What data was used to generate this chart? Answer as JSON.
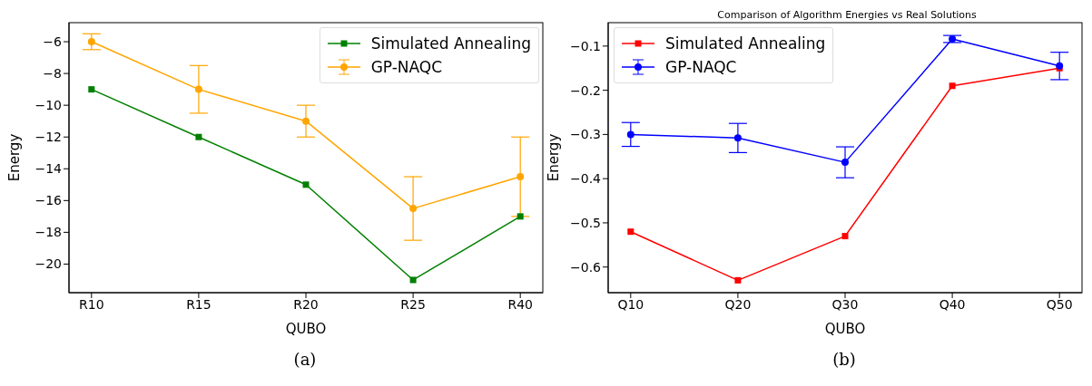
{
  "chart_data": [
    {
      "type": "line",
      "xlabel": "QUBO",
      "ylabel": "Energy",
      "categories": [
        "R10",
        "R15",
        "R20",
        "R25",
        "R40"
      ],
      "ylim": [
        -21.8,
        -4.8
      ],
      "yticks": [
        -20,
        -18,
        -16,
        -14,
        -12,
        -10,
        -8,
        -6
      ],
      "grid": false,
      "legend": "top right",
      "annotations": [
        "(a)"
      ],
      "series": [
        {
          "name": "Simulated Annealing",
          "color": "#008000",
          "marker": "square",
          "values": [
            -9,
            -12,
            -15,
            -21,
            -17
          ]
        },
        {
          "name": "GP-NAQC",
          "color": "#ffa500",
          "marker": "circle",
          "values": [
            -6,
            -9,
            -11,
            -16.5,
            -14.5
          ],
          "errors": [
            0.5,
            1.5,
            1,
            2,
            2.5
          ]
        }
      ]
    },
    {
      "type": "line",
      "title": "Comparison of Algorithm Energies vs Real Solutions",
      "xlabel": "QUBO",
      "ylabel": "Energy",
      "categories": [
        "Q10",
        "Q20",
        "Q30",
        "Q40",
        "Q50"
      ],
      "ylim": [
        -0.658,
        -0.047
      ],
      "yticks": [
        -0.6,
        -0.5,
        -0.4,
        -0.3,
        -0.2,
        -0.1
      ],
      "grid": false,
      "legend": "top left",
      "annotations": [
        "(b)"
      ],
      "series": [
        {
          "name": "Simulated Annealing",
          "color": "#ff0000",
          "marker": "square",
          "values": [
            -0.52,
            -0.63,
            -0.53,
            -0.19,
            -0.15
          ]
        },
        {
          "name": "GP-NAQC",
          "color": "#0000ff",
          "marker": "circle",
          "values": [
            -0.3,
            -0.308,
            -0.363,
            -0.084,
            -0.145
          ],
          "errors": [
            0.027,
            0.033,
            0.035,
            0.008,
            0.031
          ]
        }
      ]
    }
  ]
}
